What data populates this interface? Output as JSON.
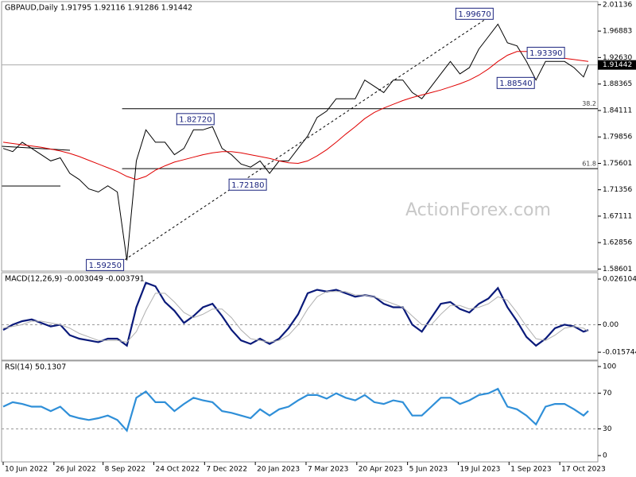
{
  "chart_data": [
    {
      "type": "line",
      "title": "GBPAUD,Daily  1.91795 1.92116 1.91286 1.91442",
      "x": [
        0,
        6,
        12,
        18,
        24,
        30,
        36,
        42,
        48,
        54,
        60,
        66,
        72,
        78,
        84,
        90,
        96,
        102,
        108,
        114,
        120,
        126,
        132,
        138,
        144,
        150,
        156,
        162,
        168,
        174,
        180,
        186,
        192,
        198,
        204,
        210,
        216,
        222,
        228,
        234,
        240,
        246,
        252,
        258,
        264,
        270,
        276,
        282,
        288,
        294,
        300,
        306,
        312,
        318,
        324,
        330,
        336,
        342,
        348,
        354,
        360,
        366,
        369
      ],
      "xlim": [
        -1,
        375
      ],
      "xticks": [
        {
          "value": 0,
          "label": "10 Jun 2022"
        },
        {
          "value": 32,
          "label": "26 Jul 2022"
        },
        {
          "value": 63,
          "label": "8 Sep 2022"
        },
        {
          "value": 95,
          "label": "24 Oct 2022"
        },
        {
          "value": 127,
          "label": "7 Dec 2022"
        },
        {
          "value": 159,
          "label": "20 Jan 2023"
        },
        {
          "value": 191,
          "label": "7 Mar 2023"
        },
        {
          "value": 223,
          "label": "20 Apr 2023"
        },
        {
          "value": 255,
          "label": "5 Jun 2023"
        },
        {
          "value": 287,
          "label": "19 Jul 2023"
        },
        {
          "value": 319,
          "label": "1 Sep 2023"
        },
        {
          "value": 351,
          "label": "17 Oct 2023"
        }
      ],
      "ylim": [
        1.584,
        2.015
      ],
      "yticks": [
        2.01136,
        1.96883,
        {
          "value": 1.9263,
          "label": "1.92630"
        },
        1.88365,
        1.84111,
        1.79856,
        1.75601,
        1.71356,
        1.67111,
        1.62856,
        1.58601
      ],
      "series": [
        {
          "color": "#000000",
          "values": [
            1.78,
            1.775,
            1.79,
            1.78,
            1.77,
            1.76,
            1.765,
            1.74,
            1.73,
            1.715,
            1.71,
            1.72,
            1.71,
            1.6,
            1.76,
            1.81,
            1.79,
            1.79,
            1.77,
            1.78,
            1.81,
            1.81,
            1.815,
            1.78,
            1.77,
            1.755,
            1.75,
            1.76,
            1.74,
            1.76,
            1.76,
            1.78,
            1.8,
            1.83,
            1.84,
            1.86,
            1.86,
            1.86,
            1.89,
            1.88,
            1.87,
            1.89,
            1.89,
            1.87,
            1.86,
            1.88,
            1.9,
            1.92,
            1.9,
            1.91,
            1.94,
            1.96,
            1.98,
            1.95,
            1.945,
            1.92,
            1.89,
            1.92,
            1.92,
            1.92,
            1.91,
            1.895,
            1.91442
          ]
        },
        {
          "color": "#e00000",
          "values": [
            1.79,
            1.788,
            1.786,
            1.784,
            1.782,
            1.779,
            1.776,
            1.772,
            1.767,
            1.761,
            1.755,
            1.749,
            1.743,
            1.735,
            1.73,
            1.735,
            1.745,
            1.752,
            1.758,
            1.762,
            1.766,
            1.77,
            1.773,
            1.775,
            1.775,
            1.773,
            1.77,
            1.767,
            1.764,
            1.76,
            1.757,
            1.756,
            1.76,
            1.768,
            1.778,
            1.79,
            1.803,
            1.815,
            1.828,
            1.838,
            1.845,
            1.851,
            1.857,
            1.862,
            1.866,
            1.87,
            1.874,
            1.879,
            1.884,
            1.89,
            1.898,
            1.908,
            1.92,
            1.93,
            1.936,
            1.936,
            1.932,
            1.929,
            1.927,
            1.925,
            1.923,
            1.921,
            1.92
          ]
        }
      ],
      "fib_levels": [
        {
          "value": 1.844,
          "label": "38.2"
        },
        {
          "value": 1.7475,
          "label": "61.8"
        }
      ],
      "fib_from_x": 75,
      "annotations": [
        {
          "x": 309,
          "value": 1.9967,
          "label": "1.99670"
        },
        {
          "x": 354,
          "value": 1.9339,
          "label": "1.93390"
        },
        {
          "x": 335,
          "value": 1.8854,
          "label": "1.88540"
        },
        {
          "x": 133,
          "value": 1.8272,
          "label": "1.82720"
        },
        {
          "x": 166,
          "value": 1.7218,
          "label": "1.72180"
        },
        {
          "x": 76,
          "value": 1.5925,
          "label": "1.59250"
        }
      ],
      "watermark": "ActionForex.com"
    },
    {
      "type": "line",
      "title": "MACD(12,26,9) -0.003049 -0.003791",
      "ylim": [
        -0.0198,
        0.0293
      ],
      "yticks": [
        0.026104,
        {
          "value": 0,
          "label": "0.00"
        },
        -0.015744
      ],
      "levels": [
        0
      ],
      "series": [
        {
          "color": "#0a1a7a",
          "values": [
            -0.003,
            0.0,
            0.002,
            0.003,
            0.001,
            -0.001,
            0.0,
            -0.006,
            -0.008,
            -0.009,
            -0.01,
            -0.008,
            -0.008,
            -0.012,
            0.01,
            0.024,
            0.022,
            0.013,
            0.008,
            0.001,
            0.005,
            0.01,
            0.012,
            0.005,
            -0.003,
            -0.009,
            -0.011,
            -0.008,
            -0.011,
            -0.008,
            -0.002,
            0.006,
            0.018,
            0.02,
            0.019,
            0.02,
            0.018,
            0.016,
            0.017,
            0.016,
            0.012,
            0.01,
            0.01,
            0.0,
            -0.004,
            0.004,
            0.012,
            0.013,
            0.009,
            0.007,
            0.012,
            0.015,
            0.021,
            0.01,
            0.002,
            -0.007,
            -0.012,
            -0.008,
            -0.002,
            0.0,
            -0.001,
            -0.004,
            -0.003049
          ]
        },
        {
          "color": "#b0b0b0",
          "values": [
            -0.002,
            -0.001,
            0.0,
            0.002,
            0.002,
            0.001,
            0.0,
            -0.002,
            -0.005,
            -0.007,
            -0.009,
            -0.009,
            -0.009,
            -0.01,
            -0.004,
            0.008,
            0.018,
            0.018,
            0.013,
            0.007,
            0.004,
            0.006,
            0.009,
            0.009,
            0.004,
            -0.003,
            -0.008,
            -0.009,
            -0.01,
            -0.009,
            -0.006,
            0.0,
            0.009,
            0.016,
            0.019,
            0.019,
            0.019,
            0.017,
            0.017,
            0.016,
            0.014,
            0.012,
            0.01,
            0.005,
            0.0,
            0.0,
            0.006,
            0.011,
            0.011,
            0.009,
            0.01,
            0.012,
            0.016,
            0.014,
            0.007,
            -0.001,
            -0.008,
            -0.009,
            -0.006,
            -0.002,
            -0.001,
            -0.002,
            -0.003791
          ]
        }
      ]
    },
    {
      "type": "line",
      "title": "RSI(14) 50.1307",
      "ylim": [
        -6.2,
        105.4
      ],
      "yticks": [
        100,
        70,
        30,
        0
      ],
      "levels": [
        70,
        30
      ],
      "series": [
        {
          "color": "#2f8fd8",
          "values": [
            55,
            60,
            58,
            55,
            55,
            50,
            55,
            45,
            42,
            40,
            42,
            45,
            40,
            28,
            65,
            72,
            60,
            60,
            50,
            58,
            65,
            62,
            60,
            50,
            48,
            45,
            42,
            52,
            45,
            52,
            55,
            62,
            68,
            68,
            64,
            70,
            65,
            62,
            68,
            60,
            58,
            62,
            60,
            45,
            45,
            55,
            65,
            65,
            58,
            62,
            68,
            70,
            75,
            55,
            52,
            45,
            35,
            55,
            58,
            58,
            52,
            45,
            50.1307
          ]
        }
      ]
    }
  ]
}
